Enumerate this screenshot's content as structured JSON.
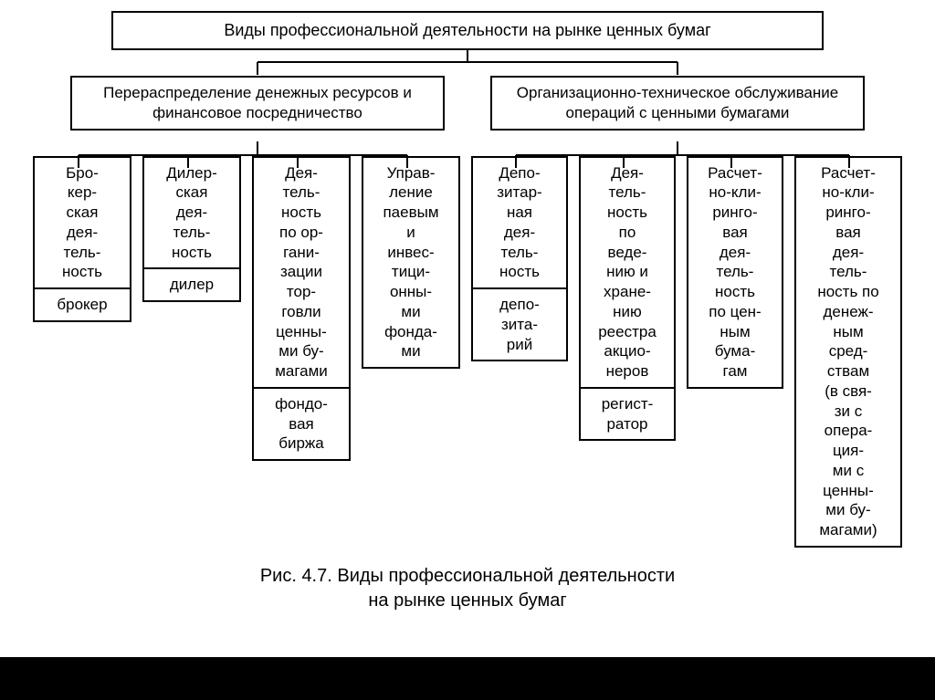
{
  "diagram": {
    "type": "tree",
    "background_color": "#ffffff",
    "border_color": "#000000",
    "border_width": 2,
    "font_family": "Arial",
    "root": {
      "label": "Виды профессиональной деятельности на рынке ценных бумаг",
      "fontsize": 18
    },
    "level2": [
      {
        "id": "redistribution",
        "label": "Перераспределение денежных ресурсов и финансовое посредничество",
        "fontsize": 17
      },
      {
        "id": "org_tech",
        "label": "Организационно-техническое обслуживание операций с ценными бумагами",
        "fontsize": 17
      }
    ],
    "columns": [
      {
        "parent": "redistribution",
        "top": "Бро-\nкер-\nская\nдея-\nтель-\nность",
        "bottom": "брокер"
      },
      {
        "parent": "redistribution",
        "top": "Дилер-\nская\nдея-\nтель-\nность",
        "bottom": "дилер"
      },
      {
        "parent": "redistribution",
        "top": "Дея-\nтель-\nность\nпо ор-\nгани-\nзации\nтор-\nговли\nценны-\nми бу-\nмагами",
        "bottom": "фондо-\nвая\nбиржа"
      },
      {
        "parent": "redistribution",
        "top": "Управ-\nление\nпаевым\nи\nинвес-\nтици-\nонны-\nми\nфонда-\nми",
        "bottom": null
      },
      {
        "parent": "org_tech",
        "top": "Депо-\nзитар-\nная\nдея-\nтель-\nность",
        "bottom": "депо-\nзита-\nрий"
      },
      {
        "parent": "org_tech",
        "top": "Дея-\nтель-\nность\nпо\nведе-\nнию и\nхране-\nнию\nреестра\nакцио-\nнеров",
        "bottom": "регист-\nратор"
      },
      {
        "parent": "org_tech",
        "top": "Расчет-\nно-кли-\nринго-\nвая\nдея-\nтель-\nность\nпо цен-\nным\nбума-\nгам",
        "bottom": null
      },
      {
        "parent": "org_tech",
        "top": "Расчет-\nно-кли-\nринго-\nвая\nдея-\nтель-\nность по\nденеж-\nным\nсред-\nствам\n(в свя-\nзи с\nопера-\nция-\nми с\nценны-\nми бу-\nмагами)",
        "bottom": null
      }
    ]
  },
  "caption": "Рис. 4.7. Виды профессиональной деятельности\nна рынке ценных бумаг",
  "caption_fontsize": 20
}
